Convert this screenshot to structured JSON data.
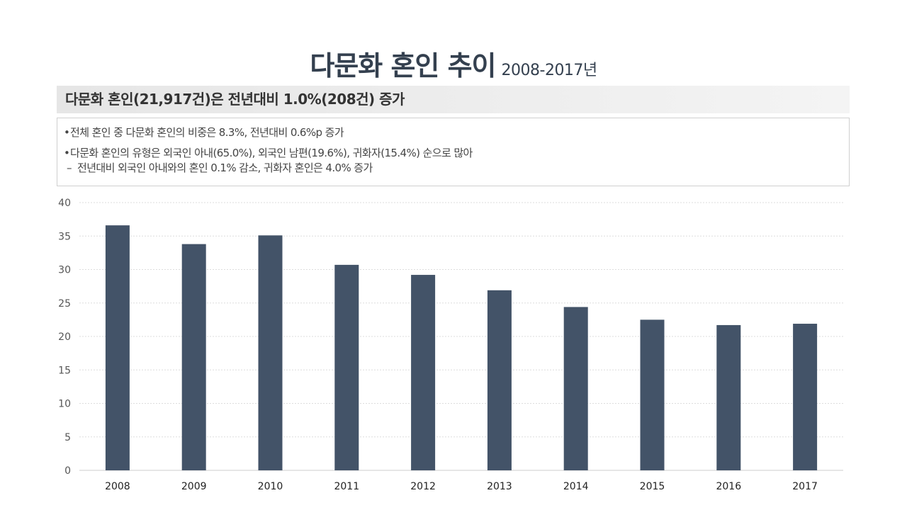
{
  "title": {
    "main": "다문화 혼인 추이",
    "sub": "2008-2017년"
  },
  "summary": "다문화 혼인(21,917건)은 전년대비 1.0%(208건) 증가",
  "notes": {
    "bullet_symbol": "•",
    "dash_symbol": "–",
    "line1": "전체 혼인 중 다문화 혼인의 비중은 8.3%, 전년대비 0.6%p 증가",
    "line2": "다문화 혼인의 유형은 외국인 아내(65.0%), 외국인 남편(19.6%), 귀화자(15.4%) 순으로 많아",
    "line3": "전년대비 외국인 아내와의 혼인 0.1% 감소, 귀화자 혼인은 4.0% 증가"
  },
  "colors": {
    "bar": "#435368",
    "title": "#34404f",
    "grid": "#dddddd",
    "axis": "#cccccc"
  },
  "chart_data": {
    "type": "bar",
    "categories": [
      "2008",
      "2009",
      "2010",
      "2011",
      "2012",
      "2013",
      "2014",
      "2015",
      "2016",
      "2017"
    ],
    "values": [
      36.6,
      33.8,
      35.1,
      30.7,
      29.2,
      26.9,
      24.4,
      22.5,
      21.7,
      21.9
    ],
    "ylim": [
      0,
      40
    ],
    "yticks": [
      0,
      5,
      10,
      15,
      20,
      25,
      30,
      35,
      40
    ],
    "grid": true,
    "xlabel": "",
    "ylabel": ""
  }
}
